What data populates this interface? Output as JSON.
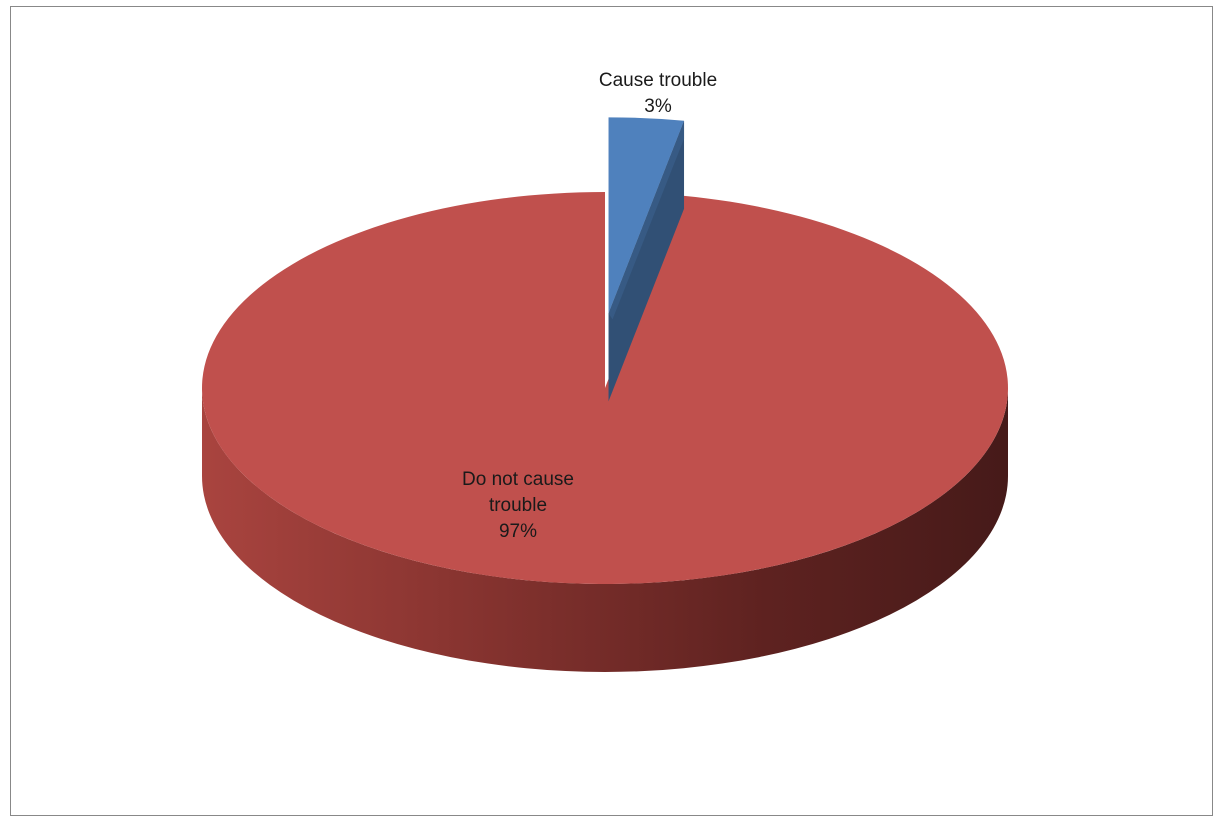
{
  "chart_data": {
    "type": "pie",
    "three_d": true,
    "exploded_slice": "Cause trouble",
    "slices": [
      {
        "name": "Cause trouble",
        "value": 3,
        "label_lines": [
          "Cause trouble",
          "3%"
        ],
        "color": "#4F81BD"
      },
      {
        "name": "Do not cause trouble",
        "value": 97,
        "label_lines": [
          "Do not cause",
          "trouble",
          "97%"
        ],
        "color": "#C0504D"
      }
    ],
    "legend": "none",
    "title": ""
  }
}
